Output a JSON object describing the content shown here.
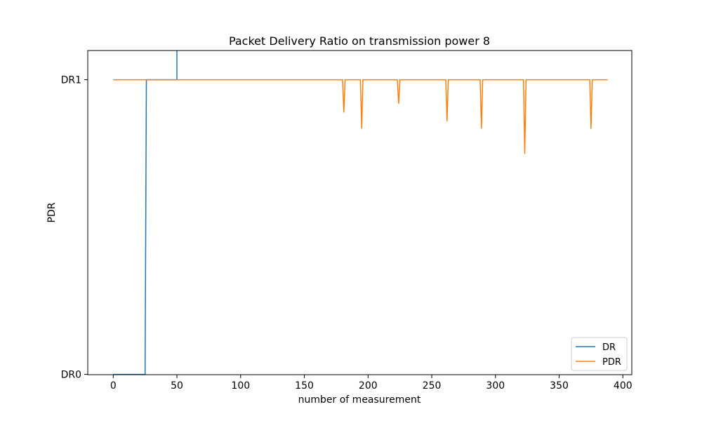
{
  "chart_data": {
    "type": "line",
    "title": "Packet Delivery Ratio on transmission power 8",
    "xlabel": "number of measurement",
    "ylabel": "PDR",
    "xlim": [
      -20,
      407
    ],
    "ylim": [
      -0.001,
      1.099
    ],
    "xticks": [
      0,
      50,
      100,
      150,
      200,
      250,
      300,
      350,
      400
    ],
    "yticks": [
      {
        "value": 0,
        "label": "DR0"
      },
      {
        "value": 1,
        "label": "DR1"
      }
    ],
    "legend_position": "lower-right",
    "grid": false,
    "series": [
      {
        "name": "DR",
        "color": "#1f77b4",
        "x": [
          0,
          25,
          26,
          49,
          50,
          50
        ],
        "y": [
          0,
          0,
          1,
          1,
          1,
          1.12
        ]
      },
      {
        "name": "PDR",
        "color": "#ff7f0e",
        "x": [
          0,
          180,
          181,
          182,
          194,
          195,
          196,
          223,
          224,
          225,
          261,
          262,
          263,
          288,
          289,
          290,
          322,
          323,
          324,
          374,
          375,
          376,
          388
        ],
        "y": [
          1,
          1,
          0.89,
          1,
          1,
          0.835,
          1,
          1,
          0.92,
          1,
          1,
          0.86,
          1,
          1,
          0.835,
          1,
          1,
          0.75,
          1,
          1,
          0.835,
          1,
          1
        ]
      }
    ]
  }
}
